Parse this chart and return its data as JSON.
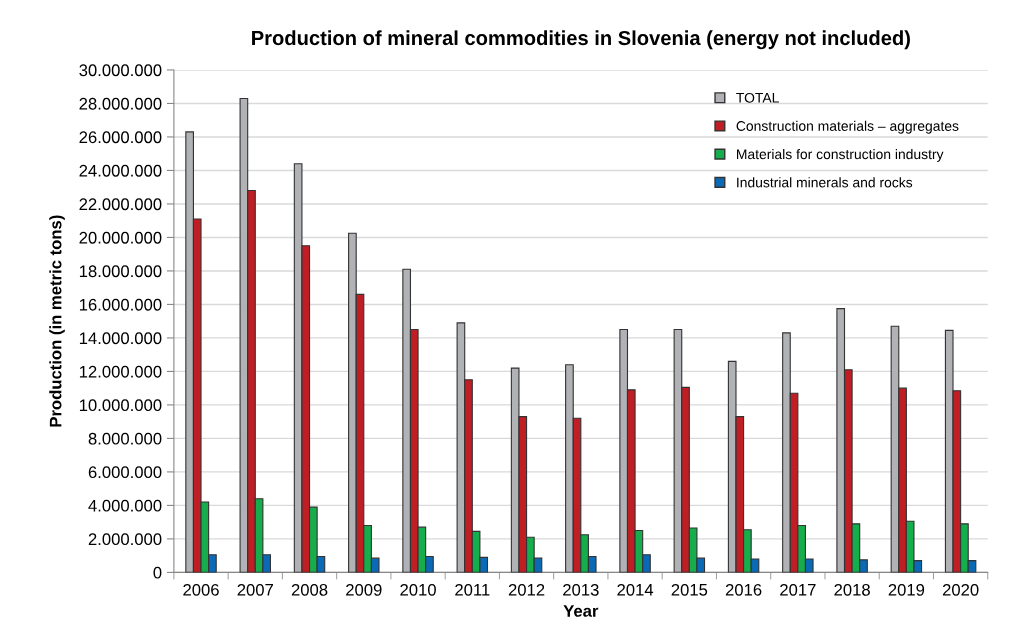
{
  "chart_data": {
    "type": "bar",
    "title": "Production of mineral commodities in Slovenia (energy not included)",
    "xlabel": "Year",
    "ylabel": "Production (in metric tons)",
    "categories": [
      "2006",
      "2007",
      "2008",
      "2009",
      "2010",
      "2011",
      "2012",
      "2013",
      "2014",
      "2015",
      "2016",
      "2017",
      "2018",
      "2019",
      "2020"
    ],
    "series": [
      {
        "name": "TOTAL",
        "color": "#b1b2b6",
        "values": [
          26300000,
          28300000,
          24400000,
          20250000,
          18100000,
          14900000,
          12200000,
          12400000,
          14500000,
          14500000,
          12600000,
          14300000,
          15750000,
          14700000,
          14450000
        ]
      },
      {
        "name": "Construction materials – aggregates",
        "color": "#be1e24",
        "values": [
          21100000,
          22800000,
          19500000,
          16600000,
          14500000,
          11500000,
          9300000,
          9200000,
          10900000,
          11050000,
          9300000,
          10700000,
          12100000,
          11000000,
          10850000
        ]
      },
      {
        "name": "Materials for construction industry",
        "color": "#16ad4c",
        "values": [
          4200000,
          4400000,
          3900000,
          2800000,
          2700000,
          2450000,
          2100000,
          2250000,
          2500000,
          2650000,
          2550000,
          2800000,
          2900000,
          3050000,
          2900000
        ]
      },
      {
        "name": "Industrial minerals and rocks",
        "color": "#0a6ab6",
        "values": [
          1050000,
          1050000,
          950000,
          850000,
          950000,
          900000,
          850000,
          950000,
          1050000,
          850000,
          800000,
          800000,
          750000,
          700000,
          700000
        ]
      }
    ],
    "ylim": [
      0,
      30000000
    ],
    "yticks": [
      {
        "value": 0,
        "label": "0"
      },
      {
        "value": 2000000,
        "label": "2.000.000"
      },
      {
        "value": 4000000,
        "label": "4.000.000"
      },
      {
        "value": 6000000,
        "label": "6.000.000"
      },
      {
        "value": 8000000,
        "label": "8.000.000"
      },
      {
        "value": 10000000,
        "label": "10.000.000"
      },
      {
        "value": 12000000,
        "label": "12.000.000"
      },
      {
        "value": 14000000,
        "label": "14.000.000"
      },
      {
        "value": 16000000,
        "label": "16.000.000"
      },
      {
        "value": 18000000,
        "label": "18.000.000"
      },
      {
        "value": 20000000,
        "label": "20.000.000"
      },
      {
        "value": 22000000,
        "label": "22.000.000"
      },
      {
        "value": 24000000,
        "label": "24.000.000"
      },
      {
        "value": 26000000,
        "label": "26.000.000"
      },
      {
        "value": 28000000,
        "label": "28.000.000"
      },
      {
        "value": 30000000,
        "label": "30.000.000"
      }
    ],
    "grid": "y",
    "legend": "top right"
  }
}
